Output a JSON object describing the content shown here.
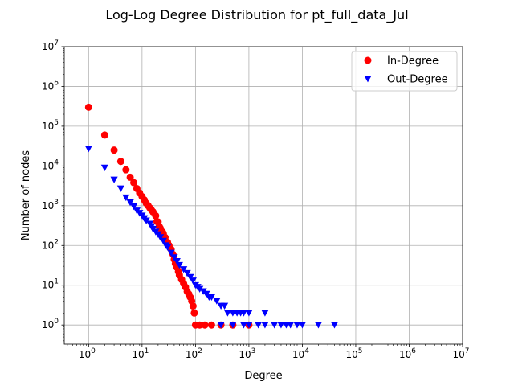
{
  "figure": {
    "title": "Log-Log Degree Distribution for pt_full_data_Jul"
  },
  "chart_data": {
    "type": "scatter",
    "title": "Log-Log Degree Distribution for pt_full_data_Jul",
    "xlabel": "Degree",
    "ylabel": "Number of nodes",
    "xscale": "log",
    "yscale": "log",
    "xlim": [
      0.35,
      10000000
    ],
    "ylim": [
      0.33,
      10000000
    ],
    "xticks": [
      {
        "base": "10",
        "exp": "0",
        "value": 1
      },
      {
        "base": "10",
        "exp": "1",
        "value": 10
      },
      {
        "base": "10",
        "exp": "2",
        "value": 100
      },
      {
        "base": "10",
        "exp": "3",
        "value": 1000
      },
      {
        "base": "10",
        "exp": "4",
        "value": 10000
      },
      {
        "base": "10",
        "exp": "5",
        "value": 100000
      },
      {
        "base": "10",
        "exp": "6",
        "value": 1000000
      },
      {
        "base": "10",
        "exp": "7",
        "value": 10000000
      }
    ],
    "yticks": [
      {
        "base": "10",
        "exp": "0",
        "value": 1
      },
      {
        "base": "10",
        "exp": "1",
        "value": 10
      },
      {
        "base": "10",
        "exp": "2",
        "value": 100
      },
      {
        "base": "10",
        "exp": "3",
        "value": 1000
      },
      {
        "base": "10",
        "exp": "4",
        "value": 10000
      },
      {
        "base": "10",
        "exp": "5",
        "value": 100000
      },
      {
        "base": "10",
        "exp": "6",
        "value": 1000000
      },
      {
        "base": "10",
        "exp": "7",
        "value": 10000000
      }
    ],
    "grid": true,
    "legend_position": "top-right",
    "series": [
      {
        "name": "In-Degree",
        "marker": "circle",
        "color": "#ff0000",
        "points": [
          [
            1,
            300000
          ],
          [
            2,
            60000
          ],
          [
            3,
            25000
          ],
          [
            4,
            13000
          ],
          [
            5,
            8000
          ],
          [
            6,
            5200
          ],
          [
            7,
            3800
          ],
          [
            8,
            2700
          ],
          [
            9,
            2100
          ],
          [
            10,
            1700
          ],
          [
            11,
            1400
          ],
          [
            12,
            1150
          ],
          [
            13,
            1000
          ],
          [
            14,
            880
          ],
          [
            15,
            780
          ],
          [
            16,
            700
          ],
          [
            18,
            560
          ],
          [
            19,
            400
          ],
          [
            20,
            390
          ],
          [
            21,
            300
          ],
          [
            22,
            270
          ],
          [
            24,
            220
          ],
          [
            25,
            200
          ],
          [
            27,
            160
          ],
          [
            30,
            120
          ],
          [
            32,
            100
          ],
          [
            35,
            80
          ],
          [
            38,
            60
          ],
          [
            40,
            45
          ],
          [
            42,
            35
          ],
          [
            45,
            28
          ],
          [
            48,
            22
          ],
          [
            50,
            18
          ],
          [
            55,
            14
          ],
          [
            60,
            11
          ],
          [
            65,
            9
          ],
          [
            70,
            7
          ],
          [
            75,
            6
          ],
          [
            80,
            5
          ],
          [
            85,
            4
          ],
          [
            90,
            3
          ],
          [
            95,
            2
          ],
          [
            100,
            1
          ],
          [
            120,
            1
          ],
          [
            150,
            1
          ],
          [
            200,
            1
          ],
          [
            300,
            1
          ],
          [
            500,
            1
          ],
          [
            1000,
            1
          ]
        ]
      },
      {
        "name": "Out-Degree",
        "marker": "triangle-down",
        "color": "#0000ff",
        "points": [
          [
            1,
            27000
          ],
          [
            2,
            9000
          ],
          [
            3,
            4500
          ],
          [
            4,
            2700
          ],
          [
            5,
            1600
          ],
          [
            6,
            1200
          ],
          [
            7,
            950
          ],
          [
            8,
            750
          ],
          [
            9,
            650
          ],
          [
            10,
            560
          ],
          [
            11,
            480
          ],
          [
            12,
            420
          ],
          [
            14,
            350
          ],
          [
            15,
            300
          ],
          [
            16,
            260
          ],
          [
            18,
            220
          ],
          [
            20,
            190
          ],
          [
            22,
            160
          ],
          [
            25,
            130
          ],
          [
            28,
            100
          ],
          [
            30,
            90
          ],
          [
            35,
            65
          ],
          [
            40,
            50
          ],
          [
            45,
            40
          ],
          [
            50,
            32
          ],
          [
            60,
            25
          ],
          [
            70,
            20
          ],
          [
            80,
            16
          ],
          [
            90,
            13
          ],
          [
            100,
            10
          ],
          [
            110,
            9
          ],
          [
            120,
            8
          ],
          [
            140,
            7
          ],
          [
            160,
            6
          ],
          [
            180,
            5
          ],
          [
            200,
            5
          ],
          [
            250,
            4
          ],
          [
            300,
            3
          ],
          [
            350,
            3
          ],
          [
            400,
            2
          ],
          [
            500,
            2
          ],
          [
            600,
            2
          ],
          [
            700,
            2
          ],
          [
            800,
            2
          ],
          [
            1000,
            2
          ],
          [
            2000,
            2
          ],
          [
            300,
            1
          ],
          [
            500,
            1
          ],
          [
            800,
            1
          ],
          [
            1000,
            1
          ],
          [
            1500,
            1
          ],
          [
            2000,
            1
          ],
          [
            3000,
            1
          ],
          [
            4000,
            1
          ],
          [
            5000,
            1
          ],
          [
            6000,
            1
          ],
          [
            8000,
            1
          ],
          [
            10000,
            1
          ],
          [
            20000,
            1
          ],
          [
            40000,
            1
          ]
        ]
      }
    ]
  },
  "legend": {
    "entries": [
      {
        "label": "In-Degree",
        "marker": "circle",
        "color": "#ff0000"
      },
      {
        "label": "Out-Degree",
        "marker": "triangle-down",
        "color": "#0000ff"
      }
    ]
  }
}
